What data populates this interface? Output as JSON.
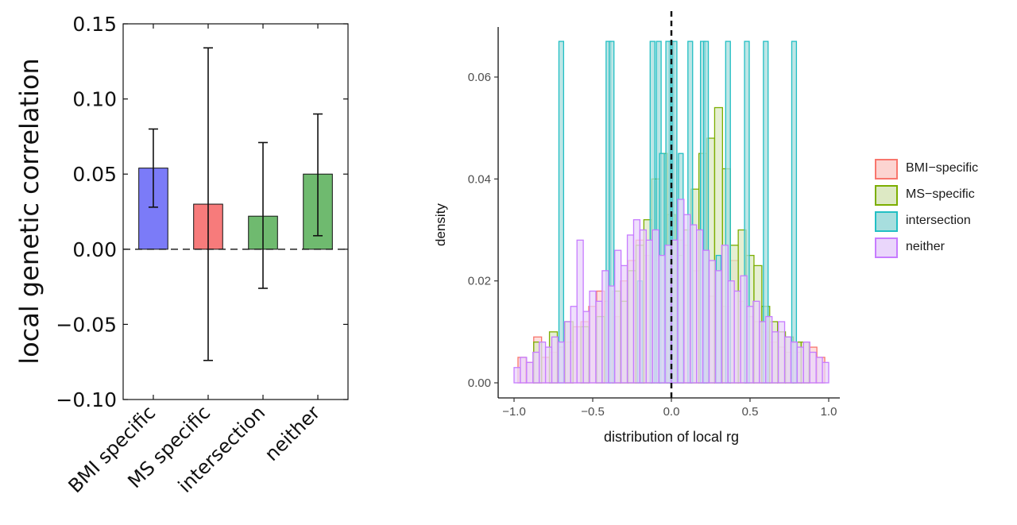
{
  "left_chart_data": {
    "type": "bar",
    "ylabel": "local genetic correlation",
    "ylim": [
      -0.1,
      0.15
    ],
    "yticks": [
      -0.1,
      -0.05,
      0.0,
      0.05,
      0.1,
      0.15
    ],
    "ytick_labels": [
      "−0.10",
      "−0.05",
      "0.00",
      "0.05",
      "0.10",
      "0.15"
    ],
    "categories": [
      "BMI specific",
      "MS specific",
      "intersection",
      "neither"
    ],
    "values": [
      0.054,
      0.03,
      0.022,
      0.05
    ],
    "error_low": [
      0.028,
      -0.074,
      -0.026,
      0.009
    ],
    "error_high": [
      0.08,
      0.134,
      0.071,
      0.09
    ],
    "colors": [
      "#7b7bf8",
      "#f77b7b",
      "#6fba6f",
      "#6fba6f"
    ],
    "reference_line": 0.0
  },
  "chart_data": {
    "type": "bar",
    "subtype": "histogram",
    "xlabel": "distribution of local rg",
    "ylabel": "density",
    "xlim": [
      -1.0,
      1.0
    ],
    "xticks": [
      -1.0,
      -0.5,
      0.0,
      0.5,
      1.0
    ],
    "xtick_labels": [
      "−1.0",
      "−0.5",
      "0.0",
      "0.5",
      "1.0"
    ],
    "ylim": [
      0.0,
      0.066
    ],
    "yticks": [
      0.0,
      0.02,
      0.04,
      0.06
    ],
    "ytick_labels": [
      "0.00",
      "0.02",
      "0.04",
      "0.06"
    ],
    "reference_line": 0.0,
    "series": [
      {
        "name": "BMI−specific",
        "stroke": "#f8766d",
        "fill": "#fcd4d1",
        "bins": [
          [
            -0.95,
            0.005
          ],
          [
            -0.9,
            0.004
          ],
          [
            -0.85,
            0.009
          ],
          [
            -0.8,
            0.005
          ],
          [
            -0.75,
            0.006
          ],
          [
            -0.7,
            0.007
          ],
          [
            -0.65,
            0.008
          ],
          [
            -0.6,
            0.011
          ],
          [
            -0.55,
            0.012
          ],
          [
            -0.5,
            0.015
          ],
          [
            -0.45,
            0.018
          ],
          [
            -0.4,
            0.016
          ],
          [
            -0.35,
            0.013
          ],
          [
            -0.3,
            0.02
          ],
          [
            -0.25,
            0.024
          ],
          [
            -0.2,
            0.028
          ],
          [
            -0.15,
            0.025
          ],
          [
            -0.1,
            0.024
          ],
          [
            -0.05,
            0.022
          ],
          [
            0.0,
            0.02
          ],
          [
            0.05,
            0.028
          ],
          [
            0.1,
            0.027
          ],
          [
            0.15,
            0.022
          ],
          [
            0.2,
            0.022
          ],
          [
            0.25,
            0.017
          ],
          [
            0.3,
            0.016
          ],
          [
            0.35,
            0.015
          ],
          [
            0.4,
            0.024
          ],
          [
            0.45,
            0.016
          ],
          [
            0.5,
            0.013
          ],
          [
            0.55,
            0.012
          ],
          [
            0.6,
            0.01
          ],
          [
            0.65,
            0.008
          ],
          [
            0.7,
            0.007
          ],
          [
            0.75,
            0.006
          ],
          [
            0.8,
            0.006
          ],
          [
            0.85,
            0.008
          ],
          [
            0.9,
            0.007
          ],
          [
            0.95,
            0.005
          ]
        ]
      },
      {
        "name": "MS−specific",
        "stroke": "#7cae00",
        "fill": "#dde9c4",
        "bins": [
          [
            -0.85,
            0.008
          ],
          [
            -0.75,
            0.01
          ],
          [
            -0.65,
            0.012
          ],
          [
            -0.55,
            0.011
          ],
          [
            -0.45,
            0.013
          ],
          [
            -0.35,
            0.018
          ],
          [
            -0.3,
            0.016
          ],
          [
            -0.25,
            0.022
          ],
          [
            -0.2,
            0.027
          ],
          [
            -0.15,
            0.032
          ],
          [
            -0.1,
            0.04
          ],
          [
            -0.05,
            0.045
          ],
          [
            0.0,
            0.033
          ],
          [
            0.05,
            0.025
          ],
          [
            0.1,
            0.03
          ],
          [
            0.15,
            0.038
          ],
          [
            0.2,
            0.045
          ],
          [
            0.25,
            0.048
          ],
          [
            0.3,
            0.054
          ],
          [
            0.35,
            0.042
          ],
          [
            0.4,
            0.027
          ],
          [
            0.45,
            0.03
          ],
          [
            0.5,
            0.025
          ],
          [
            0.55,
            0.023
          ],
          [
            0.6,
            0.015
          ],
          [
            0.65,
            0.012
          ],
          [
            0.7,
            0.01
          ],
          [
            0.75,
            0.009
          ],
          [
            0.8,
            0.008
          ],
          [
            0.85,
            0.008
          ]
        ]
      },
      {
        "name": "intersection",
        "stroke": "#22bfc4",
        "fill": "#a7dede",
        "bins": [
          [
            -0.7,
            0.067
          ],
          [
            -0.4,
            0.067
          ],
          [
            -0.38,
            0.067
          ],
          [
            -0.12,
            0.067
          ],
          [
            -0.08,
            0.067
          ],
          [
            0.0,
            0.067
          ],
          [
            0.02,
            0.067
          ],
          [
            0.12,
            0.067
          ],
          [
            0.2,
            0.067
          ],
          [
            0.22,
            0.067
          ],
          [
            0.36,
            0.067
          ],
          [
            0.48,
            0.067
          ],
          [
            0.6,
            0.067
          ],
          [
            0.78,
            0.067
          ],
          [
            -0.02,
            0.067
          ],
          [
            -0.06,
            0.045
          ],
          [
            0.06,
            0.045
          ],
          [
            -0.2,
            0.02
          ],
          [
            0.3,
            0.025
          ]
        ]
      },
      {
        "name": "neither",
        "stroke": "#c77cff",
        "fill": "#ead6fb",
        "bins": [
          [
            -0.98,
            0.003
          ],
          [
            -0.94,
            0.005
          ],
          [
            -0.9,
            0.004
          ],
          [
            -0.86,
            0.006
          ],
          [
            -0.82,
            0.008
          ],
          [
            -0.78,
            0.007
          ],
          [
            -0.74,
            0.009
          ],
          [
            -0.7,
            0.008
          ],
          [
            -0.66,
            0.012
          ],
          [
            -0.62,
            0.015
          ],
          [
            -0.58,
            0.028
          ],
          [
            -0.54,
            0.014
          ],
          [
            -0.5,
            0.018
          ],
          [
            -0.46,
            0.016
          ],
          [
            -0.42,
            0.022
          ],
          [
            -0.38,
            0.019
          ],
          [
            -0.34,
            0.026
          ],
          [
            -0.3,
            0.023
          ],
          [
            -0.26,
            0.029
          ],
          [
            -0.22,
            0.032
          ],
          [
            -0.18,
            0.03
          ],
          [
            -0.14,
            0.028
          ],
          [
            -0.1,
            0.03
          ],
          [
            -0.06,
            0.025
          ],
          [
            -0.02,
            0.027
          ],
          [
            0.02,
            0.028
          ],
          [
            0.06,
            0.036
          ],
          [
            0.1,
            0.033
          ],
          [
            0.14,
            0.031
          ],
          [
            0.18,
            0.03
          ],
          [
            0.22,
            0.026
          ],
          [
            0.26,
            0.024
          ],
          [
            0.3,
            0.022
          ],
          [
            0.34,
            0.027
          ],
          [
            0.38,
            0.02
          ],
          [
            0.42,
            0.018
          ],
          [
            0.46,
            0.021
          ],
          [
            0.5,
            0.015
          ],
          [
            0.54,
            0.016
          ],
          [
            0.58,
            0.012
          ],
          [
            0.62,
            0.013
          ],
          [
            0.66,
            0.01
          ],
          [
            0.7,
            0.012
          ],
          [
            0.74,
            0.009
          ],
          [
            0.78,
            0.008
          ],
          [
            0.82,
            0.007
          ],
          [
            0.86,
            0.008
          ],
          [
            0.9,
            0.006
          ],
          [
            0.94,
            0.005
          ],
          [
            0.98,
            0.004
          ]
        ]
      }
    ],
    "legend": {
      "placement": "right",
      "entries": [
        "BMI−specific",
        "MS−specific",
        "intersection",
        "neither"
      ]
    }
  }
}
